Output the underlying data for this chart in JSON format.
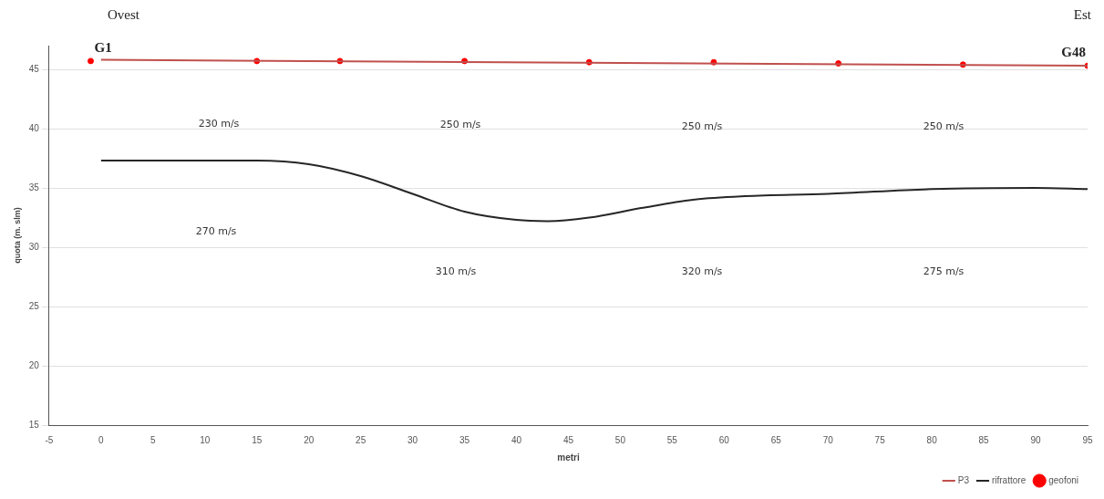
{
  "chart_data": {
    "type": "line",
    "xlabel": "metri",
    "ylabel": "quota (m. slm)",
    "xlim": [
      -5,
      95
    ],
    "xticks": [
      -5,
      0,
      5,
      10,
      15,
      20,
      25,
      30,
      35,
      40,
      45,
      50,
      55,
      60,
      65,
      70,
      75,
      80,
      85,
      90,
      95
    ],
    "ylim": [
      15,
      47
    ],
    "yticks": [
      15,
      20,
      25,
      30,
      35,
      40,
      45
    ],
    "grid": "y",
    "legend": "bottom right",
    "series": [
      {
        "name": "P3",
        "color": "#c0504d",
        "x": [
          0,
          95
        ],
        "values": [
          45.8,
          45.3
        ]
      },
      {
        "name": "rifrattore",
        "color": "#262626",
        "x": [
          0,
          15,
          20,
          25,
          30,
          35,
          40,
          43,
          47,
          52,
          57,
          62,
          70,
          80,
          90,
          95
        ],
        "values": [
          37.3,
          37.3,
          37,
          36,
          34.5,
          33,
          32.3,
          32.2,
          32.5,
          33.3,
          34,
          34.3,
          34.5,
          34.9,
          35,
          34.9
        ]
      },
      {
        "name": "geofoni",
        "type": "scatter",
        "color": "#ff0000",
        "x": [
          -1,
          15,
          23,
          35,
          47,
          59,
          71,
          83,
          95
        ],
        "values": [
          45.7,
          45.7,
          45.7,
          45.7,
          45.6,
          45.6,
          45.5,
          45.4,
          45.3
        ]
      }
    ],
    "annotations": [
      "Ovest",
      "Est",
      {
        "text": "G1",
        "x": -1,
        "y": 45.7
      },
      {
        "text": "G48",
        "x": 95,
        "y": 45.3
      },
      "230 m/s",
      "250 m/s",
      "250 m/s",
      "250 m/s",
      "270 m/s",
      "310 m/s",
      "320 m/s",
      "275 m/s"
    ]
  }
}
